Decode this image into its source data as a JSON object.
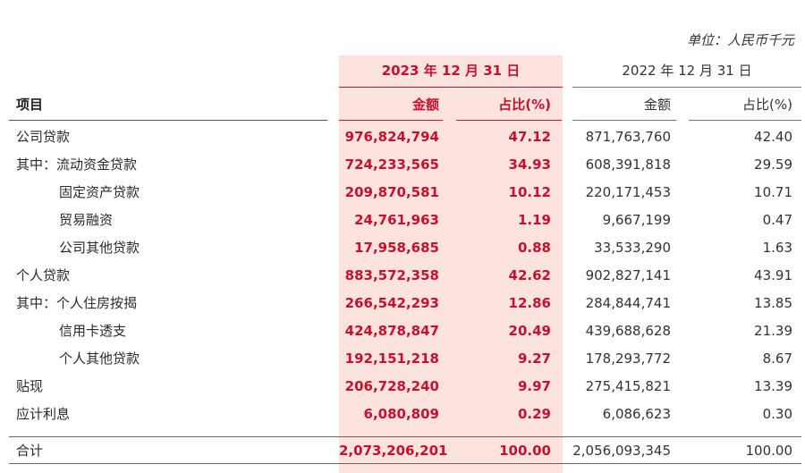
{
  "unit": "单位：人民币千元",
  "header": {
    "year_2023": "2023 年 12 月 31 日",
    "year_2022": "2022 年 12 月 31 日",
    "item": "项目",
    "amount_2023": "金额",
    "pct_2023": "占比(%)",
    "amount_2022": "金额",
    "pct_2022": "占比(%)"
  },
  "rows": [
    {
      "label": "公司贷款",
      "a23": "976,824,794",
      "p23": "47.12",
      "a22": "871,763,760",
      "p22": "42.40"
    },
    {
      "label": "其中：流动资金贷款",
      "a23": "724,233,565",
      "p23": "34.93",
      "a22": "608,391,818",
      "p22": "29.59"
    },
    {
      "label": "固定资产贷款",
      "a23": "209,870,581",
      "p23": "10.12",
      "a22": "220,171,453",
      "p22": "10.71"
    },
    {
      "label": "贸易融资",
      "a23": "24,761,963",
      "p23": "1.19",
      "a22": "9,667,199",
      "p22": "0.47"
    },
    {
      "label": "公司其他贷款",
      "a23": "17,958,685",
      "p23": "0.88",
      "a22": "33,533,290",
      "p22": "1.63"
    },
    {
      "label": "个人贷款",
      "a23": "883,572,358",
      "p23": "42.62",
      "a22": "902,827,141",
      "p22": "43.91"
    },
    {
      "label": "其中：个人住房按揭",
      "a23": "266,542,293",
      "p23": "12.86",
      "a22": "284,844,741",
      "p22": "13.85"
    },
    {
      "label": "信用卡透支",
      "a23": "424,878,847",
      "p23": "20.49",
      "a22": "439,688,628",
      "p22": "21.39"
    },
    {
      "label": "个人其他贷款",
      "a23": "192,151,218",
      "p23": "9.27",
      "a22": "178,293,772",
      "p22": "8.67"
    },
    {
      "label": "贴现",
      "a23": "206,728,240",
      "p23": "9.97",
      "a22": "275,415,821",
      "p22": "13.39"
    },
    {
      "label": "应计利息",
      "a23": "6,080,809",
      "p23": "0.29",
      "a22": "6,086,623",
      "p22": "0.30"
    }
  ],
  "total": {
    "label": "合计",
    "a23": "2,073,206,201",
    "p23": "100.00",
    "a22": "2,056,093,345",
    "p22": "100.00"
  },
  "colors": {
    "accent": "#c8102e",
    "highlight": "#fde3de"
  }
}
